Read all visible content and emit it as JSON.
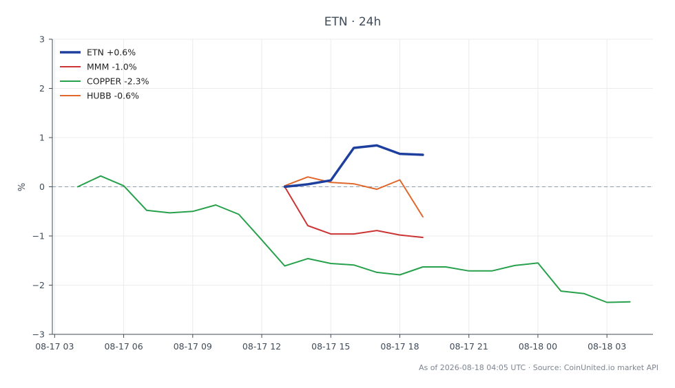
{
  "chart_data": {
    "type": "line",
    "title": "ETN · 24h",
    "xlabel": "",
    "ylabel": "%",
    "ylim": [
      -3,
      3
    ],
    "yticks": [
      -3,
      -2,
      -1,
      0,
      1,
      2,
      3
    ],
    "ytick_labels": [
      "−3",
      "−2",
      "−1",
      "0",
      "1",
      "2",
      "3"
    ],
    "xlim": [
      2.9,
      29.0
    ],
    "xticks": [
      3,
      6,
      9,
      12,
      15,
      18,
      21,
      24,
      27
    ],
    "xtick_labels": [
      "08-17 03",
      "08-17 06",
      "08-17 09",
      "08-17 12",
      "08-17 15",
      "08-17 18",
      "08-17 21",
      "08-18 00",
      "08-18 03"
    ],
    "grid": true,
    "zero_reference_line": true,
    "legend_position": "top-left",
    "series": [
      {
        "name": "ETN +0.6%",
        "color": "#1f3f9f",
        "width": 3.5,
        "x": [
          13,
          14,
          15,
          16,
          17,
          18,
          19
        ],
        "values": [
          0.0,
          0.05,
          0.13,
          0.79,
          0.84,
          0.67,
          0.65
        ]
      },
      {
        "name": "MMM -1.0%",
        "color": "#cc3333",
        "width": 2,
        "x": [
          13,
          14,
          15,
          16,
          17,
          18,
          19
        ],
        "values": [
          0.0,
          -0.79,
          -0.96,
          -0.96,
          -0.89,
          -0.98,
          -1.03
        ]
      },
      {
        "name": "COPPER -2.3%",
        "color": "#26a04a",
        "width": 2,
        "x": [
          4,
          5,
          6,
          7,
          8,
          9,
          10,
          11,
          12,
          13,
          14,
          15,
          16,
          17,
          18,
          19,
          20,
          21,
          22,
          23,
          24,
          25,
          26,
          27,
          28
        ],
        "values": [
          0.0,
          0.22,
          0.02,
          -0.48,
          -0.53,
          -0.5,
          -0.37,
          -0.56,
          -1.08,
          -1.61,
          -1.46,
          -1.56,
          -1.59,
          -1.74,
          -1.79,
          -1.63,
          -1.63,
          -1.71,
          -1.71,
          -1.6,
          -1.55,
          -2.12,
          -2.17,
          -2.35,
          -2.34
        ]
      },
      {
        "name": "HUBB -0.6%",
        "color": "#e0662a",
        "width": 2,
        "x": [
          13,
          14,
          15,
          16,
          17,
          18,
          19
        ],
        "values": [
          0.02,
          0.2,
          0.09,
          0.06,
          -0.05,
          0.14,
          -0.61
        ]
      }
    ]
  },
  "footer": "As of 2026-08-18 04:05 UTC · Source: CoinUnited.io market API"
}
